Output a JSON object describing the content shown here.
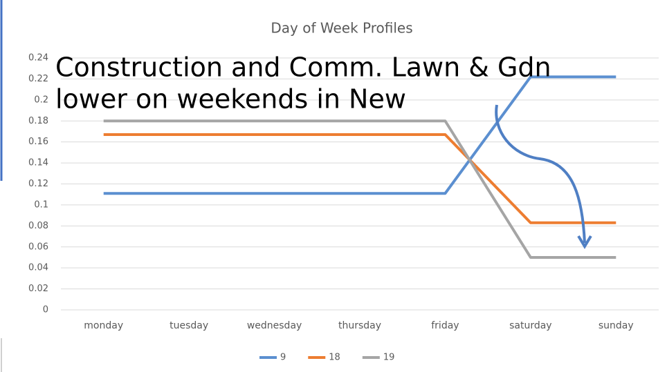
{
  "chart_data": {
    "type": "line",
    "title": "Day of Week Profiles",
    "annotation": [
      "Construction and Comm. Lawn & Gdn",
      "lower on weekends in New"
    ],
    "categories": [
      "monday",
      "tuesday",
      "wednesday",
      "thursday",
      "friday",
      "saturday",
      "sunday"
    ],
    "series": [
      {
        "name": "9",
        "color": "#5b8fd0",
        "values": [
          0.111,
          0.111,
          0.111,
          0.111,
          0.111,
          0.222,
          0.222
        ]
      },
      {
        "name": "18",
        "color": "#ed7d31",
        "values": [
          0.167,
          0.167,
          0.167,
          0.167,
          0.167,
          0.083,
          0.083
        ]
      },
      {
        "name": "19",
        "color": "#a5a5a5",
        "values": [
          0.18,
          0.18,
          0.18,
          0.18,
          0.18,
          0.05,
          0.05
        ]
      }
    ],
    "ylim": [
      0,
      0.24
    ],
    "yticks": [
      0,
      0.02,
      0.04,
      0.06,
      0.08,
      0.1,
      0.12,
      0.14,
      0.16,
      0.18,
      0.2,
      0.22,
      0.24
    ],
    "grid": true,
    "legend": "bottom"
  }
}
